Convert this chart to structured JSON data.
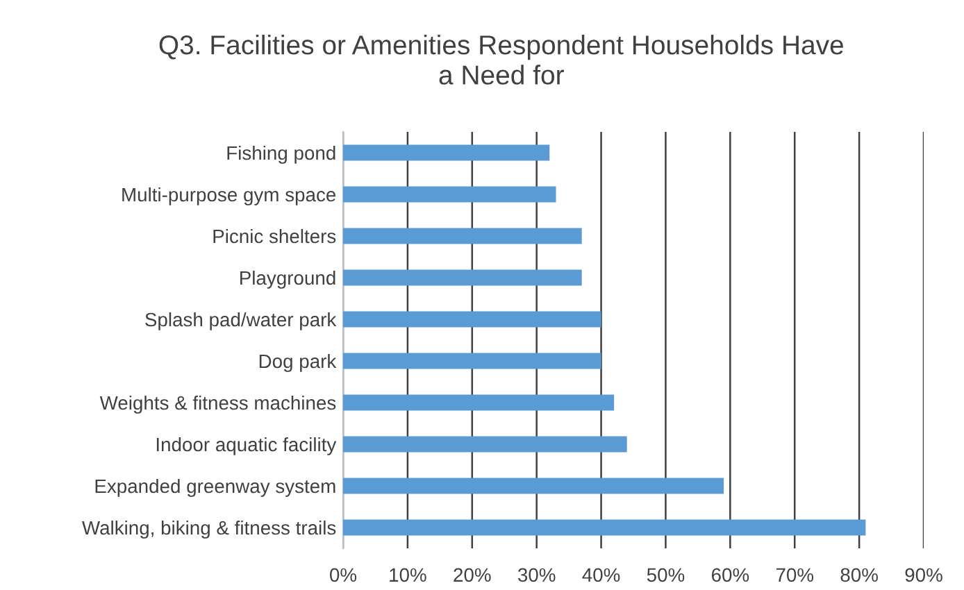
{
  "chart_data": {
    "type": "bar",
    "orientation": "horizontal",
    "title": "Q3. Facilities or Amenities Respondent Households Have\na Need for",
    "categories": [
      "Fishing pond",
      "Multi-purpose gym space",
      "Picnic shelters",
      "Playground",
      "Splash pad/water park",
      "Dog park",
      "Weights & fitness machines",
      "Indoor aquatic facility",
      "Expanded greenway system",
      "Walking, biking & fitness trails"
    ],
    "values": [
      0.32,
      0.33,
      0.37,
      0.37,
      0.4,
      0.4,
      0.42,
      0.44,
      0.59,
      0.81
    ],
    "color": "#5b9bd5",
    "xlim": [
      0,
      0.9
    ],
    "xticks": [
      {
        "value": 0,
        "label": "0%"
      },
      {
        "value": 0.1,
        "label": "10%"
      },
      {
        "value": 0.2,
        "label": "20%"
      },
      {
        "value": 0.3,
        "label": "30%"
      },
      {
        "value": 0.4,
        "label": "40%"
      },
      {
        "value": 0.5,
        "label": "50%"
      },
      {
        "value": 0.6,
        "label": "60%"
      },
      {
        "value": 0.7,
        "label": "70%"
      },
      {
        "value": 0.8,
        "label": "80%"
      },
      {
        "value": 0.9,
        "label": "90%"
      }
    ],
    "grid": "x"
  }
}
